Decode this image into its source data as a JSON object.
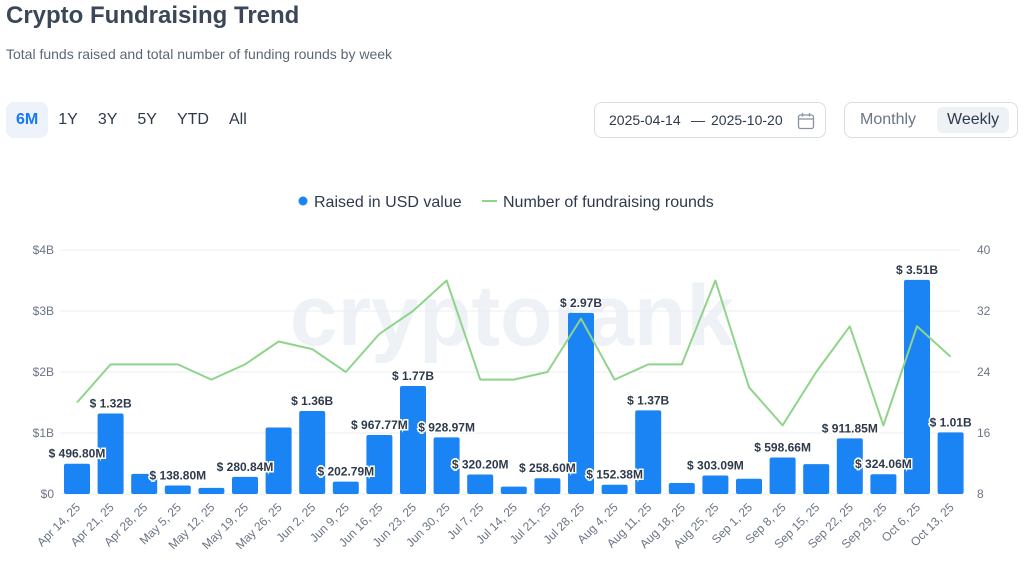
{
  "header": {
    "title": "Crypto Fundraising Trend",
    "subtitle": "Total funds raised and total number of funding rounds by week"
  },
  "range_tabs": [
    {
      "label": "6M",
      "active": true
    },
    {
      "label": "1Y",
      "active": false
    },
    {
      "label": "3Y",
      "active": false
    },
    {
      "label": "5Y",
      "active": false
    },
    {
      "label": "YTD",
      "active": false
    },
    {
      "label": "All",
      "active": false
    }
  ],
  "date_range": {
    "start": "2025-04-14",
    "separator": "—",
    "end": "2025-10-20",
    "icon": "calendar-icon"
  },
  "period_toggle": {
    "monthly_label": "Monthly",
    "weekly_label": "Weekly",
    "selected": "Weekly"
  },
  "watermark": "cryptorank",
  "colors": {
    "bar": "#1a84f5",
    "line": "#8fd48a",
    "accent": "#1677ff"
  },
  "chart_data": {
    "type": "bar",
    "legend_position": "top-center",
    "grid": true,
    "categories": [
      "Apr 14, 25",
      "Apr 21, 25",
      "Apr 28, 25",
      "May 5, 25",
      "May 12, 25",
      "May 19, 25",
      "May 26, 25",
      "Jun 2, 25",
      "Jun 9, 25",
      "Jun 16, 25",
      "Jun 23, 25",
      "Jun 30, 25",
      "Jul 7, 25",
      "Jul 14, 25",
      "Jul 21, 25",
      "Jul 28, 25",
      "Aug 4, 25",
      "Aug 11, 25",
      "Aug 18, 25",
      "Aug 25, 25",
      "Sep 1, 25",
      "Sep 8, 25",
      "Sep 15, 25",
      "Sep 22, 25",
      "Sep 29, 25",
      "Oct 6, 25",
      "Oct 13, 25"
    ],
    "left_axis": {
      "ticks": [
        "$0",
        "$1B",
        "$2B",
        "$3B",
        "$4B"
      ],
      "range": [
        0,
        4000
      ],
      "unit": "M USD"
    },
    "right_axis": {
      "ticks": [
        "8",
        "16",
        "24",
        "32",
        "40"
      ],
      "range": [
        8,
        40
      ]
    },
    "series": [
      {
        "name": "Raised in USD value",
        "kind": "bar",
        "values": [
          496.8,
          1320,
          330,
          138.8,
          100,
          280.84,
          1090,
          1360,
          202.79,
          967.77,
          1770,
          928.97,
          320.2,
          120,
          258.6,
          2970,
          152.38,
          1370,
          180,
          303.09,
          250,
          598.66,
          490,
          911.85,
          324.06,
          3510,
          1010
        ],
        "labels": [
          "$ 496.80M",
          "$ 1.32B",
          "",
          "$ 138.80M",
          "",
          "$ 280.84M",
          "",
          "$ 1.36B",
          "$ 202.79M",
          "$ 967.77M",
          "$ 1.77B",
          "$ 928.97M",
          "$ 320.20M",
          "",
          "$ 258.60M",
          "$ 2.97B",
          "$ 152.38M",
          "$ 1.37B",
          "",
          "$ 303.09M",
          "",
          "$ 598.66M",
          "",
          "$ 911.85M",
          "$ 324.06M",
          "$ 3.51B",
          "$ 1.01B"
        ]
      },
      {
        "name": "Number of fundraising rounds",
        "kind": "line",
        "values": [
          20,
          25,
          25,
          25,
          23,
          25,
          28,
          27,
          24,
          29,
          32,
          36,
          23,
          23,
          24,
          31,
          23,
          25,
          25,
          36,
          22,
          17,
          24,
          30,
          17,
          30,
          26
        ]
      }
    ]
  }
}
